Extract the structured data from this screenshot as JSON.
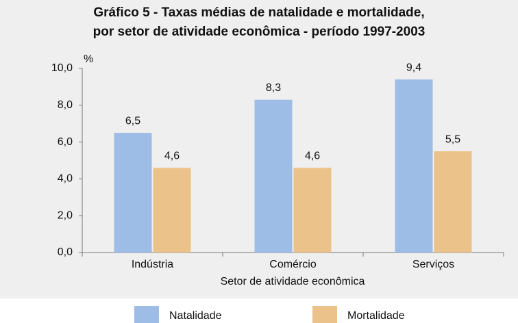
{
  "chart_data": {
    "type": "bar",
    "title": [
      "Gráfico 5 - Taxas médias de natalidade e mortalidade,",
      "por setor de atividade econômica - período 1997-2003"
    ],
    "ylabel": "%",
    "xlabel": "Setor de atividade econômica",
    "categories": [
      "Indústria",
      "Comércio",
      "Serviços"
    ],
    "series": [
      {
        "name": "Natalidade",
        "color": "#9dbde6",
        "values": [
          6.5,
          8.3,
          9.4
        ],
        "value_labels": [
          "6,5",
          "8,3",
          "9,4"
        ]
      },
      {
        "name": "Mortalidade",
        "color": "#ebc38a",
        "values": [
          4.6,
          4.6,
          5.5
        ],
        "value_labels": [
          "4,6",
          "4,6",
          "5,5"
        ]
      }
    ],
    "ylim": [
      0,
      10
    ],
    "yticks": [
      {
        "value": 0,
        "label": "0,0"
      },
      {
        "value": 2,
        "label": "2,0"
      },
      {
        "value": 4,
        "label": "4,0"
      },
      {
        "value": 6,
        "label": "6,0"
      },
      {
        "value": 8,
        "label": "8,0"
      },
      {
        "value": 10,
        "label": "10,0"
      }
    ],
    "grid": false,
    "legend": "bottom"
  }
}
